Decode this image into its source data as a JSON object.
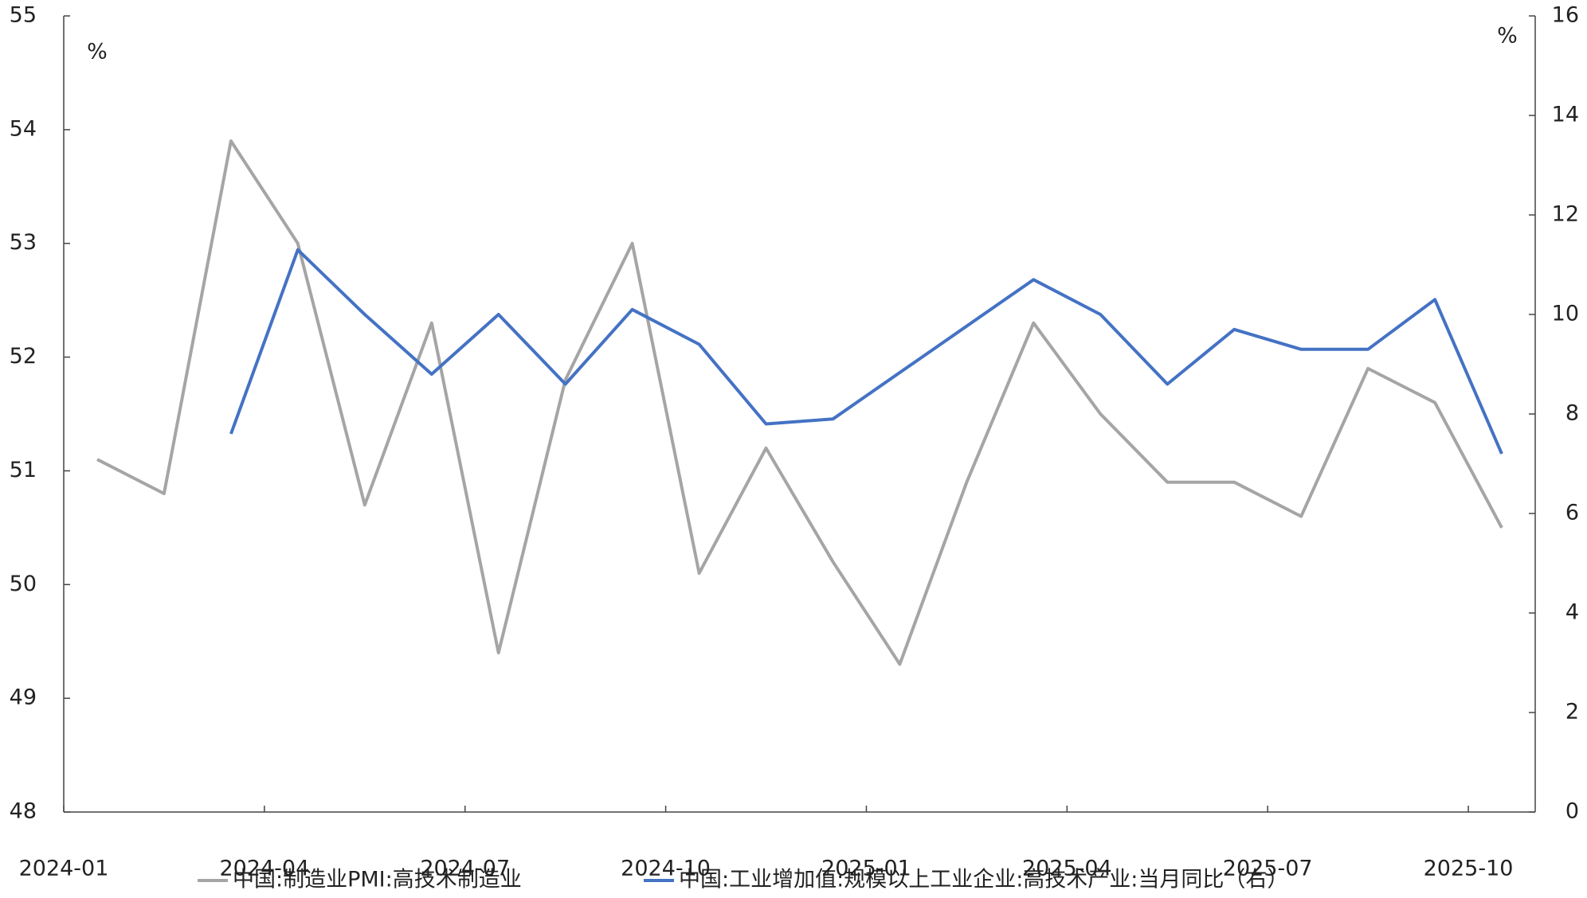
{
  "chart_data": {
    "type": "line",
    "x": [
      "2024-01",
      "2024-02",
      "2024-03",
      "2024-04",
      "2024-05",
      "2024-06",
      "2024-07",
      "2024-08",
      "2024-09",
      "2024-10",
      "2024-11",
      "2024-12",
      "2025-01",
      "2025-02",
      "2025-03",
      "2025-04",
      "2025-05",
      "2025-06",
      "2025-07",
      "2025-08",
      "2025-09",
      "2025-10"
    ],
    "xticks": [
      "2024-01",
      "2024-04",
      "2024-07",
      "2024-10",
      "2025-01",
      "2025-04",
      "2025-07",
      "2025-10"
    ],
    "ylim": [
      48,
      55
    ],
    "yticks": [
      48,
      49,
      50,
      51,
      52,
      53,
      54,
      55
    ],
    "y2lim": [
      0,
      16
    ],
    "y2ticks": [
      0,
      2,
      4,
      6,
      8,
      10,
      12,
      14,
      16
    ],
    "y_unit": "%",
    "y2_unit": "%",
    "legend": "bottom",
    "series": [
      {
        "name": "中国:制造业PMI:高技术制造业",
        "color": "#a5a5a5",
        "values": [
          51.1,
          50.8,
          53.9,
          53.0,
          50.7,
          52.3,
          49.4,
          51.8,
          53.0,
          50.1,
          51.2,
          50.2,
          49.3,
          50.9,
          52.3,
          51.5,
          50.9,
          50.9,
          50.6,
          51.9,
          51.6,
          50.5
        ]
      },
      {
        "name": "中国:工业增加值:规模以上工业企业:高技术产业:当月同比（右）",
        "color": "#4472c4",
        "axis": "y2",
        "x": [
          "2024-03",
          "2024-04",
          "2024-05",
          "2024-06",
          "2024-07",
          "2024-08",
          "2024-09",
          "2024-10",
          "2024-11",
          "2024-12",
          "2025-03",
          "2025-04",
          "2025-05",
          "2025-06",
          "2025-07",
          "2025-08",
          "2025-09",
          "2025-10"
        ],
        "values": [
          7.6,
          11.3,
          10.0,
          8.8,
          10.0,
          8.6,
          10.1,
          9.4,
          7.8,
          7.9,
          10.7,
          10.0,
          8.6,
          9.7,
          9.3,
          9.3,
          10.3,
          7.2
        ]
      }
    ]
  }
}
